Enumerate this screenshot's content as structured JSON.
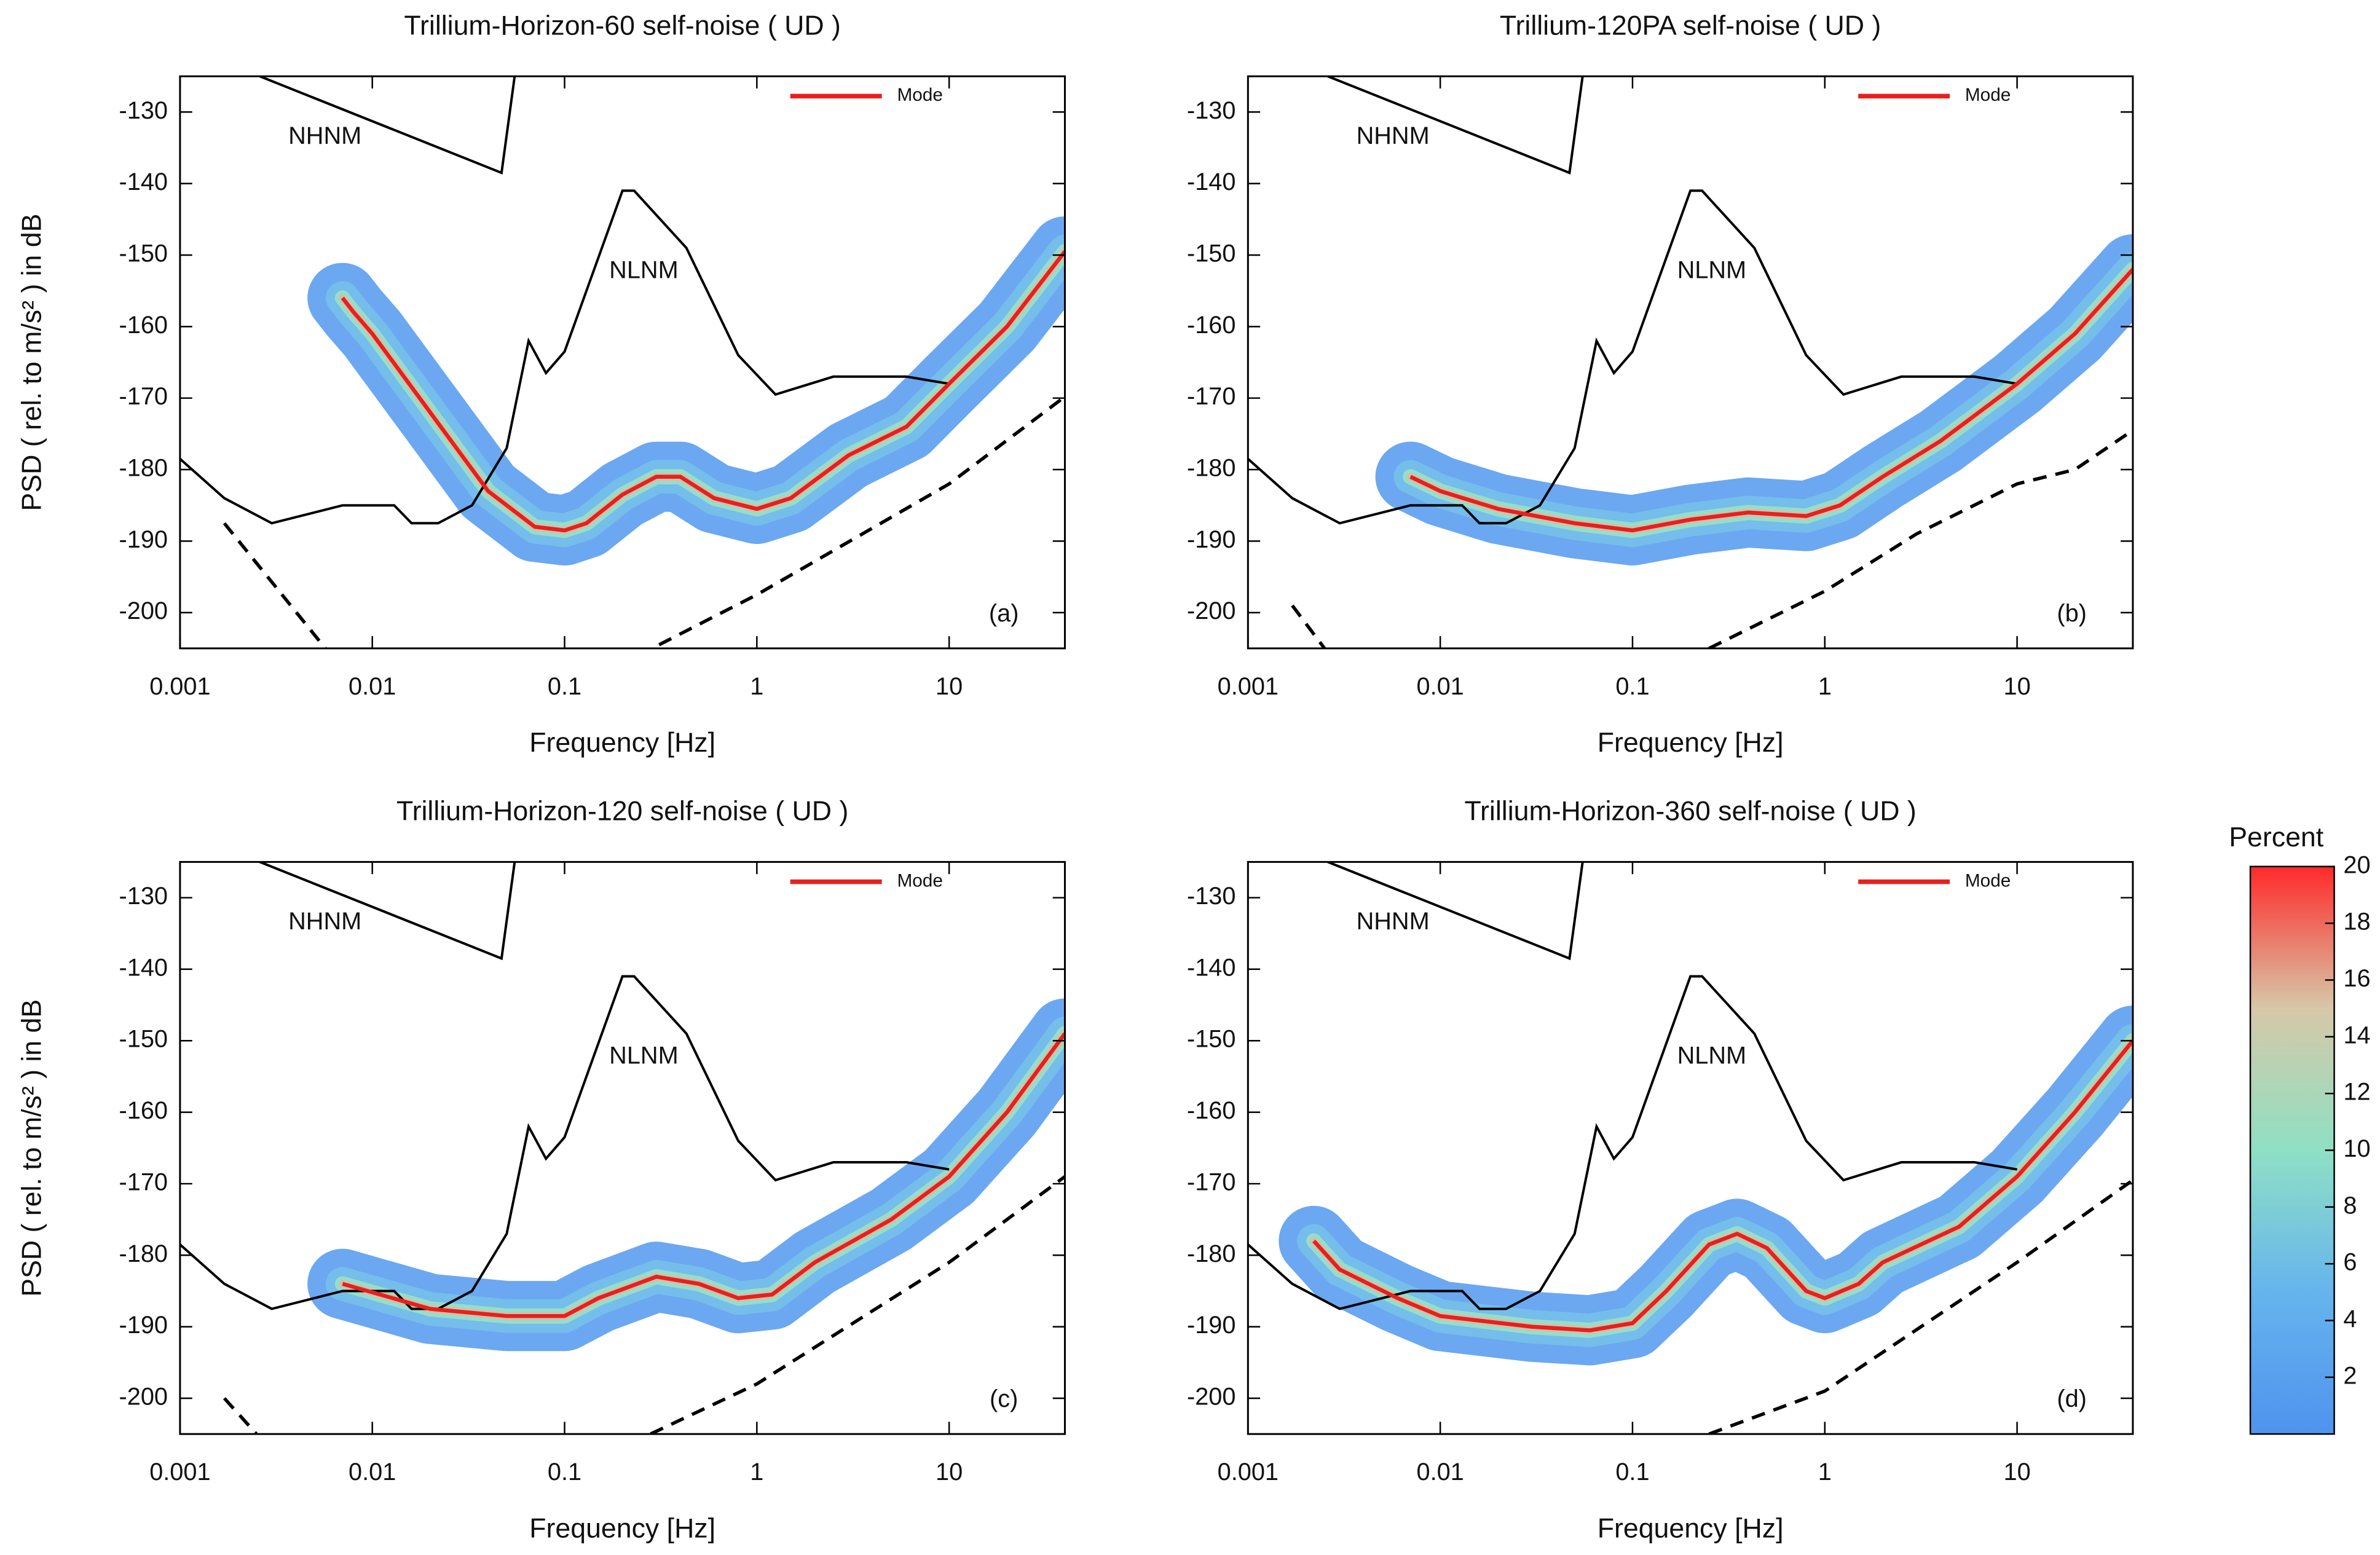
{
  "chart_data": [
    {
      "type": "line",
      "title": "Trillium-Horizon-60 self-noise ( UD )",
      "x_label": "Frequency [Hz]",
      "y_label": "PSD ( rel. to m/s² ) in dB",
      "panel_label": "(a)",
      "xlim": [
        0.001,
        40
      ],
      "xticks": [
        0.001,
        0.01,
        0.1,
        1,
        10
      ],
      "log_x": true,
      "ylim": [
        -205,
        -125
      ],
      "yticks": [
        -130,
        -140,
        -150,
        -160,
        -170,
        -180,
        -190,
        -200
      ],
      "legend": "upper right",
      "reference_curves": [
        {
          "name": "NHNM",
          "color": "#000000",
          "x": [
            0.0026,
            0.047,
            0.055
          ],
          "values": [
            -125,
            -138.5,
            -125
          ]
        },
        {
          "name": "NLNM",
          "color": "#000000",
          "x": [
            0.001,
            0.0017,
            0.003,
            0.007,
            0.013,
            0.016,
            0.022,
            0.033,
            0.05,
            0.065,
            0.08,
            0.1,
            0.2,
            0.23,
            0.43,
            0.8,
            1.25,
            2.5,
            6,
            10
          ],
          "values": [
            -178.5,
            -184,
            -187.5,
            -185,
            -185,
            -187.5,
            -187.5,
            -185,
            -177,
            -162,
            -166.5,
            -163.5,
            -141,
            -141,
            -149,
            -164,
            -169.5,
            -167,
            -167,
            -168
          ]
        }
      ],
      "series": [
        {
          "name": "Mode",
          "color": "#e8201c",
          "x": [
            0.007,
            0.008,
            0.01,
            0.02,
            0.04,
            0.07,
            0.1,
            0.13,
            0.2,
            0.3,
            0.4,
            0.6,
            1,
            1.5,
            3,
            6,
            10,
            20,
            40
          ],
          "values": [
            -156,
            -158,
            -161,
            -172,
            -183,
            -188,
            -188.5,
            -187.5,
            -183.5,
            -181,
            -181,
            -184,
            -185.5,
            -184,
            -178,
            -174,
            -168,
            -160,
            -149.5
          ]
        },
        {
          "color": "#000000",
          "dash": true,
          "x": [
            0.0017,
            0.0057,
            0.05,
            0.31,
            1,
            10,
            40
          ],
          "values": [
            -187.5,
            -205,
            null,
            -204.5,
            -197.5,
            -182,
            -169.8
          ]
        }
      ]
    },
    {
      "type": "line",
      "title": "Trillium-120PA self-noise ( UD )",
      "x_label": "Frequency [Hz]",
      "panel_label": "(b)",
      "xlim": [
        0.001,
        40
      ],
      "xticks": [
        0.001,
        0.01,
        0.1,
        1,
        10
      ],
      "log_x": true,
      "ylim": [
        -205,
        -125
      ],
      "yticks": [
        -130,
        -140,
        -150,
        -160,
        -170,
        -180,
        -190,
        -200
      ],
      "legend": "upper right",
      "reference_curves": [
        {
          "name": "NHNM",
          "color": "#000000",
          "x": [
            0.0026,
            0.047,
            0.055
          ],
          "values": [
            -125,
            -138.5,
            -125
          ]
        },
        {
          "name": "NLNM",
          "color": "#000000",
          "x": [
            0.001,
            0.0017,
            0.003,
            0.007,
            0.013,
            0.016,
            0.022,
            0.033,
            0.05,
            0.065,
            0.08,
            0.1,
            0.2,
            0.23,
            0.43,
            0.8,
            1.25,
            2.5,
            6,
            10
          ],
          "values": [
            -178.5,
            -184,
            -187.5,
            -185,
            -185,
            -187.5,
            -187.5,
            -185,
            -177,
            -162,
            -166.5,
            -163.5,
            -141,
            -141,
            -149,
            -164,
            -169.5,
            -167,
            -167,
            -168
          ]
        }
      ],
      "series": [
        {
          "name": "Mode",
          "color": "#e8201c",
          "x": [
            0.007,
            0.01,
            0.02,
            0.05,
            0.1,
            0.2,
            0.4,
            0.8,
            1.2,
            2,
            4,
            10,
            20,
            40
          ],
          "values": [
            -181,
            -183,
            -185.5,
            -187.5,
            -188.5,
            -187,
            -186,
            -186.5,
            -185,
            -181,
            -176,
            -168,
            -161,
            -152
          ]
        },
        {
          "color": "#000000",
          "dash": true,
          "x": [
            0.0017,
            0.0025,
            0.05,
            0.25,
            1,
            3,
            10,
            20,
            40
          ],
          "values": [
            -199,
            -205,
            null,
            -205,
            -197,
            -189,
            -182,
            -180,
            -174.5
          ]
        }
      ]
    },
    {
      "type": "line",
      "title": "Trillium-Horizon-120 self-noise ( UD )",
      "x_label": "Frequency [Hz]",
      "y_label": "PSD ( rel. to m/s² ) in dB",
      "panel_label": "(c)",
      "xlim": [
        0.001,
        40
      ],
      "xticks": [
        0.001,
        0.01,
        0.1,
        1,
        10
      ],
      "log_x": true,
      "ylim": [
        -205,
        -125
      ],
      "yticks": [
        -130,
        -140,
        -150,
        -160,
        -170,
        -180,
        -190,
        -200
      ],
      "legend": "upper right",
      "reference_curves": [
        {
          "name": "NHNM",
          "color": "#000000",
          "x": [
            0.0026,
            0.047,
            0.055
          ],
          "values": [
            -125,
            -138.5,
            -125
          ]
        },
        {
          "name": "NLNM",
          "color": "#000000",
          "x": [
            0.001,
            0.0017,
            0.003,
            0.007,
            0.013,
            0.016,
            0.022,
            0.033,
            0.05,
            0.065,
            0.08,
            0.1,
            0.2,
            0.23,
            0.43,
            0.8,
            1.25,
            2.5,
            6,
            10
          ],
          "values": [
            -178.5,
            -184,
            -187.5,
            -185,
            -185,
            -187.5,
            -187.5,
            -185,
            -177,
            -162,
            -166.5,
            -163.5,
            -141,
            -141,
            -149,
            -164,
            -169.5,
            -167,
            -167,
            -168
          ]
        }
      ],
      "series": [
        {
          "name": "Mode",
          "color": "#e8201c",
          "x": [
            0.007,
            0.02,
            0.05,
            0.1,
            0.15,
            0.3,
            0.5,
            0.8,
            1.2,
            2,
            5,
            10,
            20,
            40
          ],
          "values": [
            -184,
            -187.5,
            -188.5,
            -188.5,
            -186,
            -183,
            -184,
            -186,
            -185.5,
            -181,
            -175,
            -169,
            -160,
            -149
          ]
        },
        {
          "color": "#000000",
          "dash": true,
          "x": [
            0.0017,
            0.0025,
            0.05,
            0.28,
            1,
            10,
            40
          ],
          "values": [
            -200,
            -205,
            null,
            -205,
            -198,
            -181,
            -169
          ]
        }
      ]
    },
    {
      "type": "line",
      "title": "Trillium-Horizon-360 self-noise ( UD )",
      "x_label": "Frequency [Hz]",
      "panel_label": "(d)",
      "xlim": [
        0.001,
        40
      ],
      "xticks": [
        0.001,
        0.01,
        0.1,
        1,
        10
      ],
      "log_x": true,
      "ylim": [
        -205,
        -125
      ],
      "yticks": [
        -130,
        -140,
        -150,
        -160,
        -170,
        -180,
        -190,
        -200
      ],
      "legend": "upper right",
      "reference_curves": [
        {
          "name": "NHNM",
          "color": "#000000",
          "x": [
            0.0026,
            0.047,
            0.055
          ],
          "values": [
            -125,
            -138.5,
            -125
          ]
        },
        {
          "name": "NLNM",
          "color": "#000000",
          "x": [
            0.001,
            0.0017,
            0.003,
            0.007,
            0.013,
            0.016,
            0.022,
            0.033,
            0.05,
            0.065,
            0.08,
            0.1,
            0.2,
            0.23,
            0.43,
            0.8,
            1.25,
            2.5,
            6,
            10
          ],
          "values": [
            -178.5,
            -184,
            -187.5,
            -185,
            -185,
            -187.5,
            -187.5,
            -185,
            -177,
            -162,
            -166.5,
            -163.5,
            -141,
            -141,
            -149,
            -164,
            -169.5,
            -167,
            -167,
            -168
          ]
        }
      ],
      "series": [
        {
          "name": "Mode",
          "color": "#e8201c",
          "x": [
            0.0022,
            0.003,
            0.006,
            0.01,
            0.03,
            0.06,
            0.1,
            0.15,
            0.25,
            0.35,
            0.5,
            0.8,
            1,
            1.5,
            2,
            5,
            10,
            20,
            40
          ],
          "values": [
            -178,
            -182,
            -186,
            -188.5,
            -190,
            -190.5,
            -189.5,
            -185,
            -178.5,
            -177,
            -179,
            -185,
            -186,
            -184,
            -181,
            -176,
            -169,
            -160,
            -150
          ]
        },
        {
          "color": "#000000",
          "dash": true,
          "x": [
            0.25,
            1,
            10,
            40
          ],
          "values": [
            -205,
            -199,
            -181,
            -169.5
          ]
        }
      ]
    },
    {
      "type": "colorbar",
      "title": "Percent",
      "clim": [
        0,
        20
      ],
      "ticks": [
        2,
        4,
        6,
        8,
        10,
        12,
        14,
        16,
        18,
        20
      ],
      "colors": [
        "#4f93ee",
        "#66b4ee",
        "#8fe0c4",
        "#d6c8a8",
        "#ff2a2a"
      ]
    }
  ]
}
